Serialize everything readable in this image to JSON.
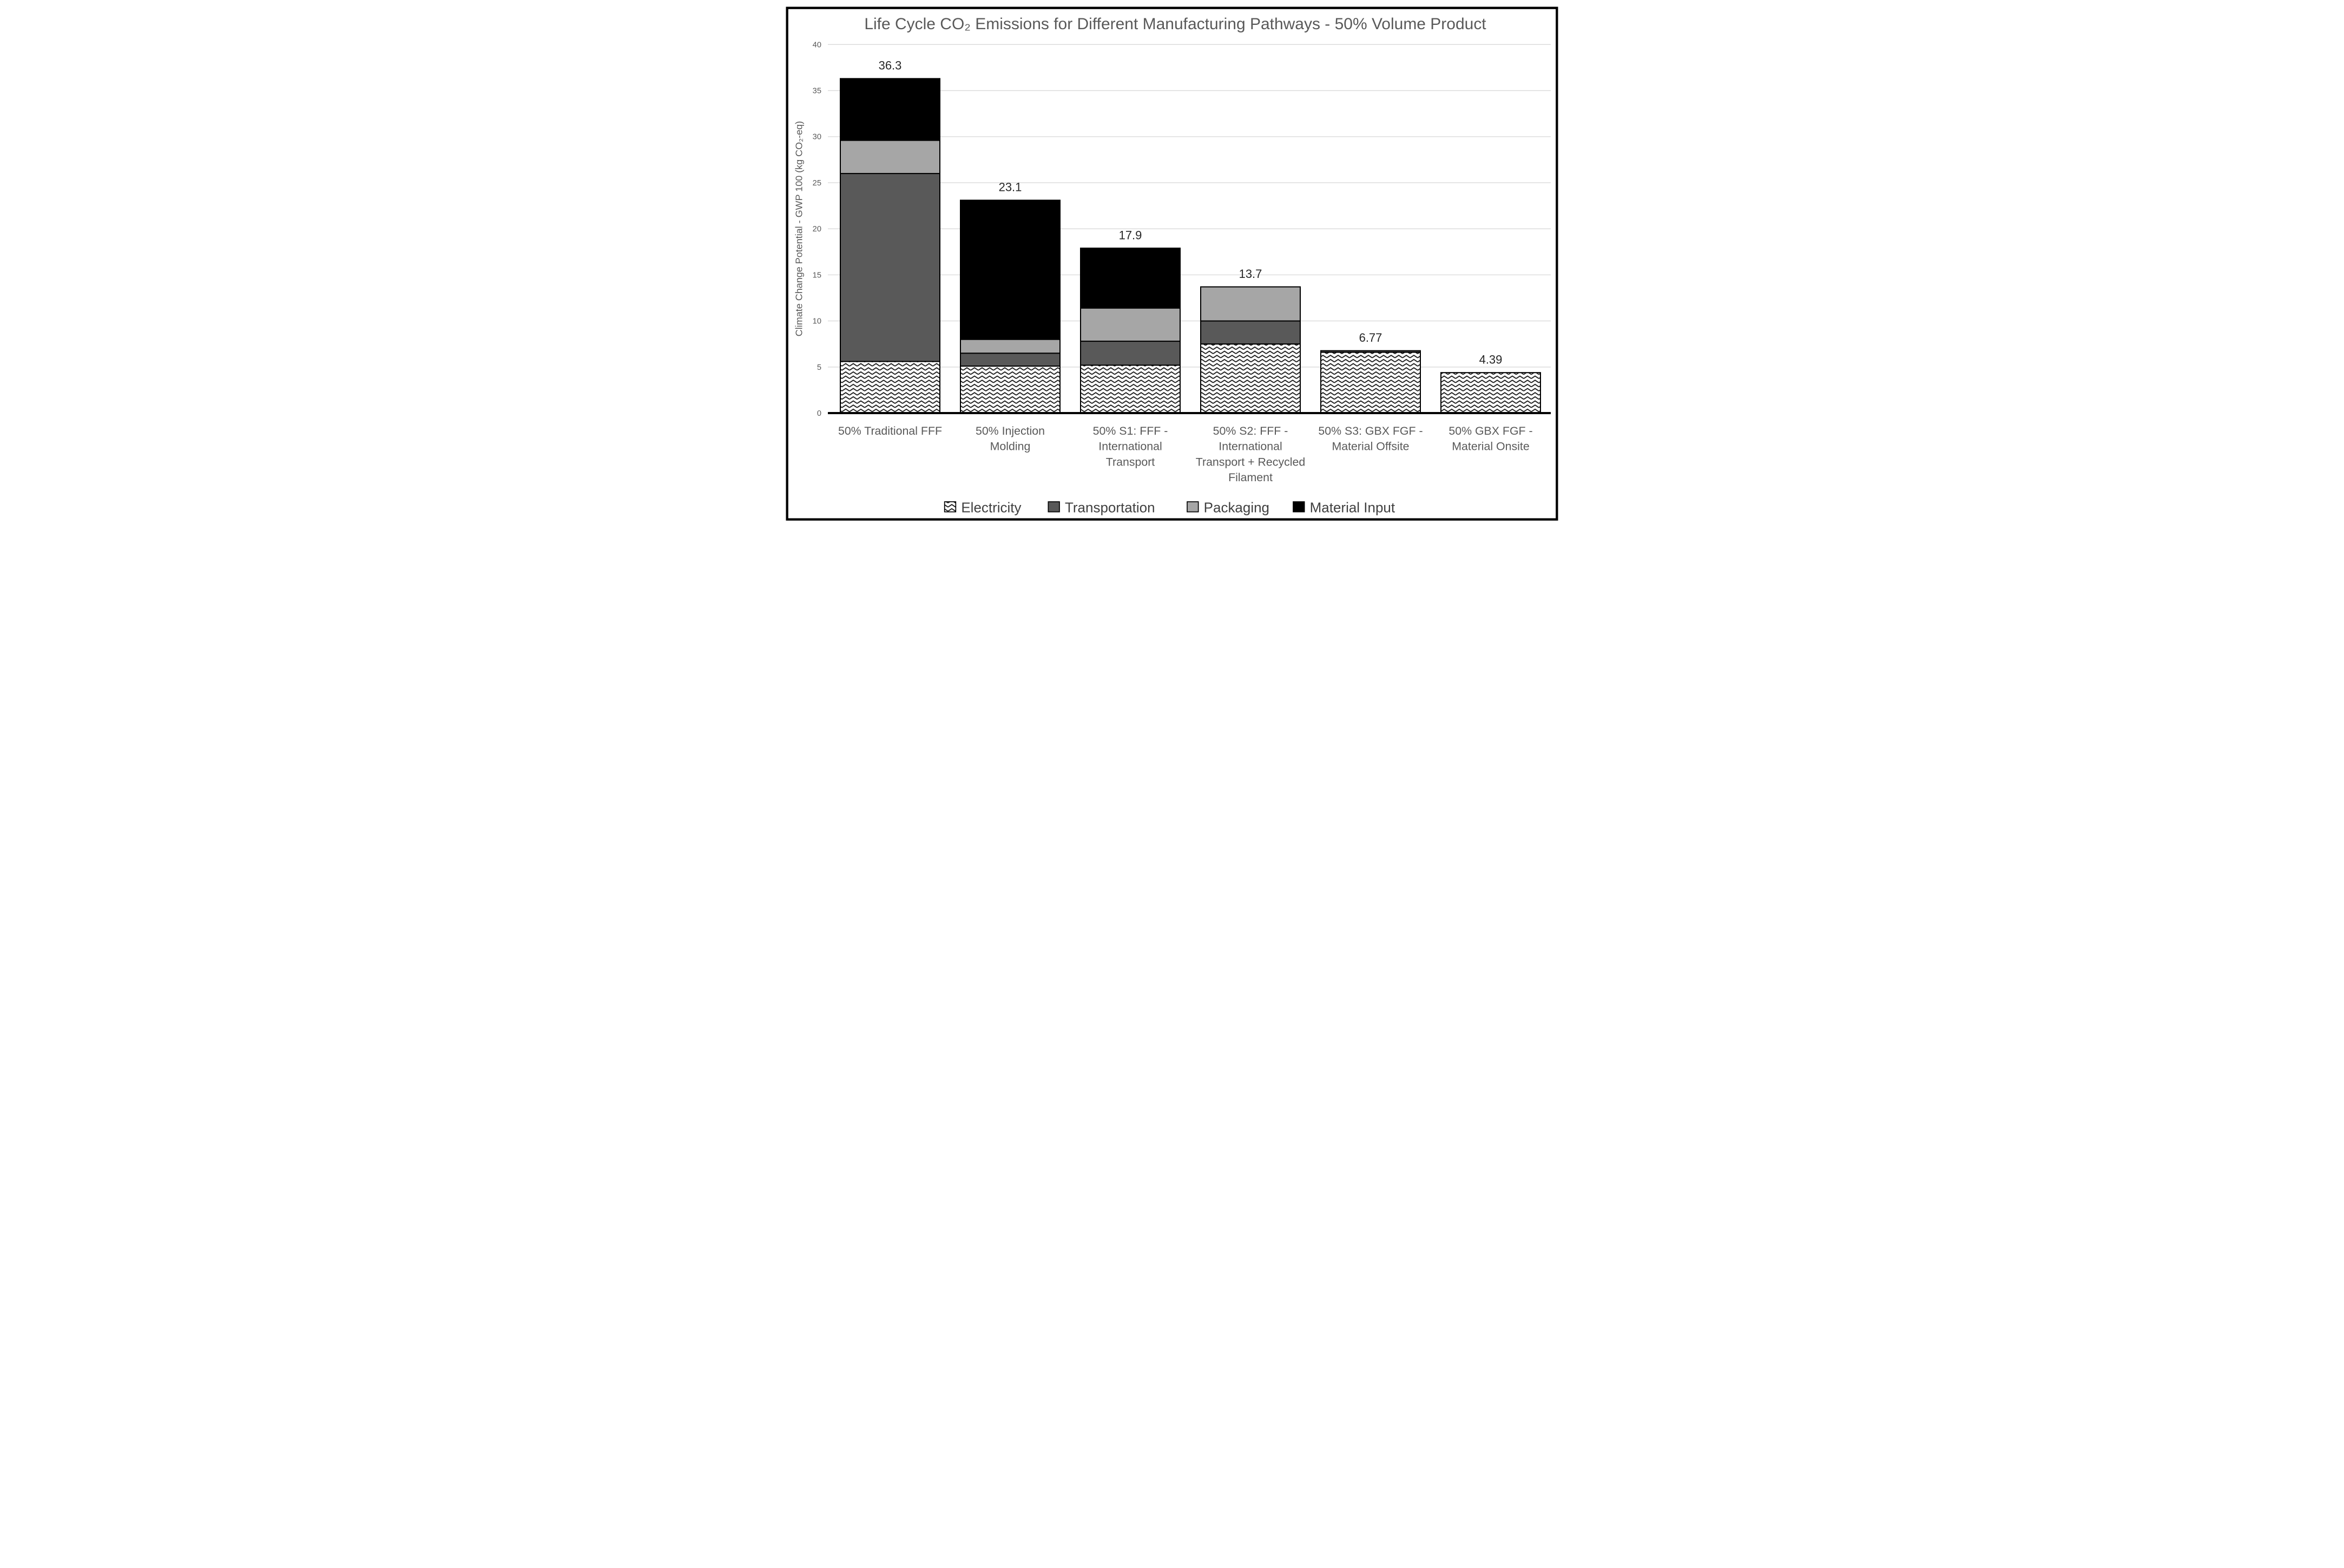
{
  "figure": {
    "title": "Life Cycle CO₂ Emissions for Different Manufacturing Pathways - 50% Volume Product"
  },
  "y_axis": {
    "label": "Climate Change Potential - GWP 100 (kg CO₂-eq)",
    "ticks": [
      0,
      5,
      10,
      15,
      20,
      25,
      30,
      35,
      40
    ],
    "min": 0,
    "max": 40
  },
  "legend": [
    {
      "label": "Electricity",
      "swatch": "hatch"
    },
    {
      "label": "Transportation",
      "swatch": "#595959"
    },
    {
      "label": "Packaging",
      "swatch": "#a6a6a6"
    },
    {
      "label": "Material Input",
      "swatch": "#000000"
    }
  ],
  "colors": {
    "grid": "#d9d9d9",
    "axis": "#000000",
    "bar_border": "#000000",
    "tick_text": "#595959",
    "title_text": "#595959",
    "category_text": "#595959",
    "value_text": "#262626",
    "legend_text": "#404040",
    "hatch_stroke": "#1a1a1a",
    "background": "#ffffff"
  },
  "chart_data": {
    "type": "bar",
    "stacked": true,
    "title": "Life Cycle CO₂ Emissions for Different Manufacturing Pathways - 50% Volume Product",
    "xlabel": "",
    "ylabel": "Climate Change Potential - GWP 100 (kg CO₂-eq)",
    "ylim": [
      0,
      40
    ],
    "ytick_step": 5,
    "grid": true,
    "legend_position": "bottom",
    "categories": [
      "50% Traditional FFF",
      "50% Injection Molding",
      "50% S1: FFF - International Transport",
      "50% S2: FFF - International Transport + Recycled Filament",
      "50% S3: GBX FGF - Material Offsite",
      "50% GBX FGF - Material Onsite"
    ],
    "category_label_lines": [
      [
        "50% Traditional FFF"
      ],
      [
        "50% Injection",
        "Molding"
      ],
      [
        "50% S1: FFF -",
        "International",
        "Transport"
      ],
      [
        "50% S2: FFF -",
        "International",
        "Transport + Recycled",
        "Filament"
      ],
      [
        "50% S3: GBX FGF -",
        "Material Offsite"
      ],
      [
        "50% GBX FGF -",
        "Material Onsite"
      ]
    ],
    "series": [
      {
        "name": "Electricity",
        "fill": "hatch",
        "values": [
          5.6,
          5.1,
          5.2,
          7.5,
          6.6,
          4.39
        ]
      },
      {
        "name": "Transportation",
        "fill": "#595959",
        "values": [
          20.4,
          1.4,
          2.6,
          2.5,
          0.17,
          0
        ]
      },
      {
        "name": "Packaging",
        "fill": "#a6a6a6",
        "values": [
          3.6,
          1.5,
          3.6,
          3.7,
          0,
          0
        ]
      },
      {
        "name": "Material Input",
        "fill": "#000000",
        "values": [
          6.7,
          15.1,
          6.5,
          0,
          0,
          0
        ]
      }
    ],
    "totals": [
      36.3,
      23.1,
      17.9,
      13.7,
      6.77,
      4.39
    ],
    "total_labels": [
      "36.3",
      "23.1",
      "17.9",
      "13.7",
      "6.77",
      "4.39"
    ]
  }
}
